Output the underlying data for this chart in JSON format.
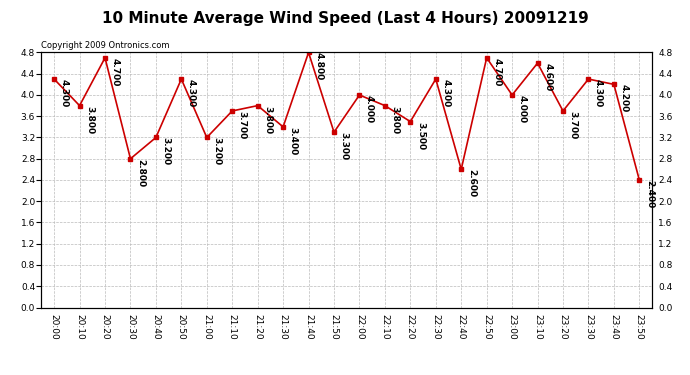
{
  "title": "10 Minute Average Wind Speed (Last 4 Hours) 20091219",
  "copyright": "Copyright 2009 Ontronics.com",
  "times": [
    "20:00",
    "20:10",
    "20:20",
    "20:30",
    "20:40",
    "20:50",
    "21:00",
    "21:10",
    "21:20",
    "21:30",
    "21:40",
    "21:50",
    "22:00",
    "22:10",
    "22:20",
    "22:30",
    "22:40",
    "22:50",
    "23:00",
    "23:10",
    "23:20",
    "23:30",
    "23:40",
    "23:50"
  ],
  "values": [
    4.3,
    3.8,
    4.7,
    2.8,
    3.2,
    4.3,
    3.2,
    3.7,
    3.8,
    3.4,
    4.8,
    3.3,
    4.0,
    3.8,
    3.5,
    4.3,
    2.6,
    4.7,
    4.0,
    4.6,
    3.7,
    4.3,
    4.2,
    2.4
  ],
  "ylim": [
    0.0,
    4.8
  ],
  "yticks": [
    0.0,
    0.4,
    0.8,
    1.2,
    1.6,
    2.0,
    2.4,
    2.8,
    3.2,
    3.6,
    4.0,
    4.4,
    4.8
  ],
  "line_color": "#cc0000",
  "marker_color": "#cc0000",
  "bg_color": "#ffffff",
  "grid_color": "#bbbbbb",
  "title_fontsize": 11,
  "label_fontsize": 6.5,
  "annot_fontsize": 6.5,
  "copyright_fontsize": 6
}
